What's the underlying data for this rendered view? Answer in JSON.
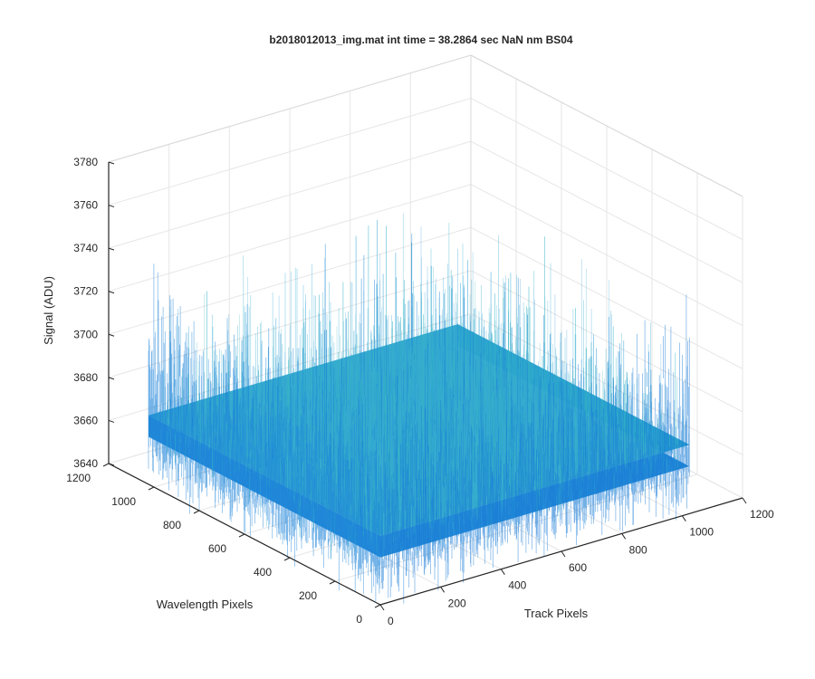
{
  "chart_data": {
    "type": "surface",
    "title": "b2018012013_img.mat int time = 38.2864 sec  NaN nm BS04",
    "xlabel": "Track Pixels",
    "ylabel": "Wavelength Pixels",
    "zlabel": "Signal (ADU)",
    "xlim": [
      0,
      1200
    ],
    "ylim": [
      0,
      1200
    ],
    "zlim": [
      3640,
      3780
    ],
    "x_ticks": [
      "0",
      "200",
      "400",
      "600",
      "800",
      "1000",
      "1200"
    ],
    "y_ticks": [
      "0",
      "200",
      "400",
      "600",
      "800",
      "1000",
      "1200"
    ],
    "z_ticks": [
      "3640",
      "3660",
      "3680",
      "3700",
      "3720",
      "3740",
      "3760",
      "3780"
    ],
    "surface": {
      "x_range": [
        0,
        1024
      ],
      "y_range": [
        0,
        1024
      ],
      "mean_signal": 3672,
      "noise_range": [
        3640,
        3750
      ],
      "colormap": "parula",
      "color_low": "#0f6fd8",
      "color_high": "#45c9b0"
    },
    "grid": true
  }
}
